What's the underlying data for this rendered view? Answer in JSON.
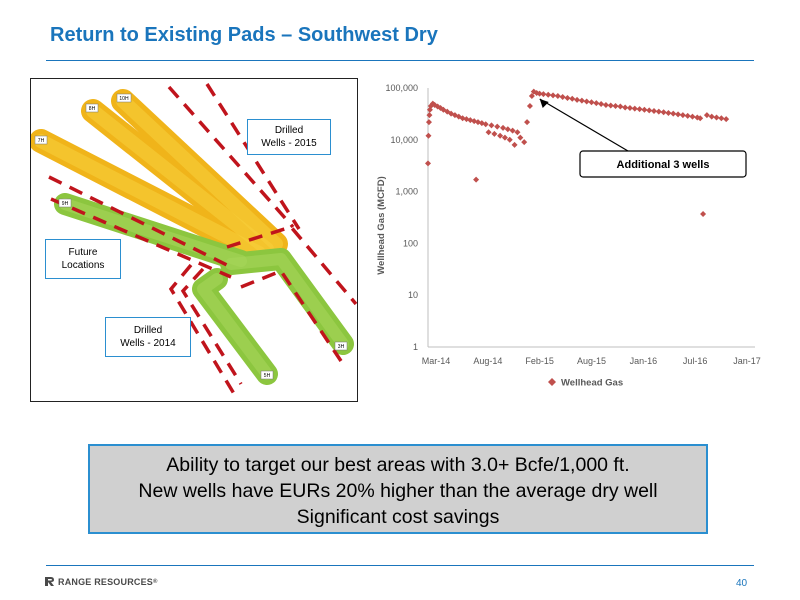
{
  "slide": {
    "title": "Return to Existing Pads – Southwest Dry",
    "page_number": "40",
    "logo_text": "RANGE RESOURCES",
    "logo_mark": "®",
    "accent_color": "#1a75bc"
  },
  "map": {
    "labels": {
      "drilled_2015": [
        "Drilled",
        "Wells - 2015"
      ],
      "future": [
        "Future",
        "Locations"
      ],
      "drilled_2014": [
        "Drilled",
        "Wells - 2014"
      ]
    },
    "well_tags": [
      "10H",
      "8H",
      "7H",
      "9H",
      "3H",
      "5H"
    ],
    "colors": {
      "wells_2015": "#f5c21a",
      "wells_2014": "#8cc63f",
      "future": "#c0141c"
    }
  },
  "banner": {
    "lines": [
      "Ability to target our best areas with 3.0+ Bcfe/1,000 ft.",
      "New wells have EURs 20% higher than the average dry well",
      "Significant cost savings"
    ]
  },
  "chart_data": {
    "type": "scatter",
    "ylabel": "Wellhead Gas (MCFD)",
    "yscale": "log",
    "ylim": [
      1,
      100000
    ],
    "y_ticks": [
      "1",
      "10",
      "100",
      "1,000",
      "10,000",
      "100,000"
    ],
    "x_ticks": [
      "Mar-14",
      "Aug-14",
      "Feb-15",
      "Aug-15",
      "Jan-16",
      "Jul-16",
      "Jan-17"
    ],
    "xlim": [
      0,
      34
    ],
    "legend": {
      "position": "bottom",
      "label": "Wellhead Gas"
    },
    "series_color": "#c0504d",
    "annotation": {
      "text": "Additional 3 wells"
    },
    "series": [
      {
        "name": "Wellhead Gas",
        "points": [
          [
            0.0,
            3500
          ],
          [
            0.05,
            12000
          ],
          [
            0.1,
            22000
          ],
          [
            0.15,
            30000
          ],
          [
            0.2,
            38000
          ],
          [
            0.3,
            45000
          ],
          [
            0.5,
            50000
          ],
          [
            0.7,
            47000
          ],
          [
            1.0,
            44000
          ],
          [
            1.3,
            41000
          ],
          [
            1.6,
            38000
          ],
          [
            2.0,
            35000
          ],
          [
            2.4,
            32000
          ],
          [
            2.8,
            30000
          ],
          [
            3.2,
            28000
          ],
          [
            3.6,
            26000
          ],
          [
            4.0,
            25000
          ],
          [
            4.4,
            24000
          ],
          [
            4.8,
            23000
          ],
          [
            5.0,
            1700
          ],
          [
            5.2,
            22000
          ],
          [
            5.6,
            21000
          ],
          [
            6.0,
            20000
          ],
          [
            6.3,
            14000
          ],
          [
            6.6,
            19000
          ],
          [
            6.9,
            13000
          ],
          [
            7.2,
            18000
          ],
          [
            7.5,
            12000
          ],
          [
            7.8,
            17000
          ],
          [
            8.0,
            11000
          ],
          [
            8.3,
            16000
          ],
          [
            8.5,
            10000
          ],
          [
            8.8,
            15000
          ],
          [
            9.0,
            8000
          ],
          [
            9.3,
            14000
          ],
          [
            9.6,
            11000
          ],
          [
            10.0,
            9000
          ],
          [
            10.3,
            22000
          ],
          [
            10.6,
            45000
          ],
          [
            10.8,
            70000
          ],
          [
            11.0,
            85000
          ],
          [
            11.3,
            80000
          ],
          [
            11.6,
            78000
          ],
          [
            12.0,
            76000
          ],
          [
            12.5,
            74000
          ],
          [
            13.0,
            72000
          ],
          [
            13.5,
            70000
          ],
          [
            14.0,
            67000
          ],
          [
            14.5,
            64000
          ],
          [
            15.0,
            62000
          ],
          [
            15.5,
            59000
          ],
          [
            16.0,
            57000
          ],
          [
            16.5,
            55000
          ],
          [
            17.0,
            53000
          ],
          [
            17.5,
            51000
          ],
          [
            18.0,
            49000
          ],
          [
            18.5,
            47000
          ],
          [
            19.0,
            46000
          ],
          [
            19.5,
            45000
          ],
          [
            20.0,
            44000
          ],
          [
            20.5,
            42000
          ],
          [
            21.0,
            41000
          ],
          [
            21.5,
            40000
          ],
          [
            22.0,
            39000
          ],
          [
            22.5,
            38000
          ],
          [
            23.0,
            37000
          ],
          [
            23.5,
            36000
          ],
          [
            24.0,
            35000
          ],
          [
            24.5,
            34000
          ],
          [
            25.0,
            33000
          ],
          [
            25.5,
            32000
          ],
          [
            26.0,
            31000
          ],
          [
            26.5,
            30000
          ],
          [
            27.0,
            29000
          ],
          [
            27.5,
            28000
          ],
          [
            28.0,
            27000
          ],
          [
            28.3,
            26000
          ],
          [
            28.6,
            370
          ],
          [
            29.0,
            30000
          ],
          [
            29.5,
            28000
          ],
          [
            30.0,
            27000
          ],
          [
            30.5,
            26000
          ],
          [
            31.0,
            25000
          ]
        ]
      }
    ]
  }
}
